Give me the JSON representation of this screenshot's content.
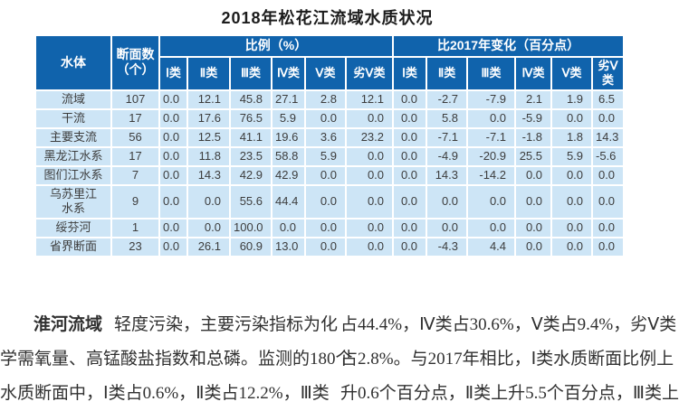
{
  "page": {
    "title": "2018年松花江流域水质状况"
  },
  "table": {
    "header": {
      "water_body": "水体",
      "section_count": "断面数\n（个）",
      "proportion_group": "比例（%）",
      "change_group": "比2017年变化（百分点）",
      "classes": [
        "Ⅰ类",
        "Ⅱ类",
        "Ⅲ类",
        "Ⅳ类",
        "Ⅴ类",
        "劣Ⅴ类"
      ]
    },
    "rows": [
      {
        "name": "流域",
        "count": "107",
        "proportion": [
          "0.0",
          "12.1",
          "45.8",
          "27.1",
          "2.8",
          "12.1"
        ],
        "change": [
          "0.0",
          "-2.7",
          "-7.9",
          "2.1",
          "1.9",
          "6.5"
        ]
      },
      {
        "name": "干流",
        "count": "17",
        "proportion": [
          "0.0",
          "17.6",
          "76.5",
          "5.9",
          "0.0",
          "0.0"
        ],
        "change": [
          "0.0",
          "5.8",
          "0.0",
          "-5.9",
          "0.0",
          "0.0"
        ]
      },
      {
        "name": "主要支流",
        "count": "56",
        "proportion": [
          "0.0",
          "12.5",
          "41.1",
          "19.6",
          "3.6",
          "23.2"
        ],
        "change": [
          "0.0",
          "-7.1",
          "-7.1",
          "-1.8",
          "1.8",
          "14.3"
        ]
      },
      {
        "name": "黑龙江水系",
        "count": "17",
        "proportion": [
          "0.0",
          "11.8",
          "23.5",
          "58.8",
          "5.9",
          "0.0"
        ],
        "change": [
          "0.0",
          "-4.9",
          "-20.9",
          "25.5",
          "5.9",
          "-5.6"
        ]
      },
      {
        "name": "图们江水系",
        "count": "7",
        "proportion": [
          "0.0",
          "14.3",
          "42.9",
          "42.9",
          "0.0",
          "0.0"
        ],
        "change": [
          "0.0",
          "14.3",
          "-14.2",
          "0.0",
          "0.0",
          "0.0"
        ]
      },
      {
        "name": "乌苏里江\n水系",
        "count": "9",
        "proportion": [
          "0.0",
          "0.0",
          "55.6",
          "44.4",
          "0.0",
          "0.0"
        ],
        "change": [
          "0.0",
          "0.0",
          "0.0",
          "0.0",
          "0.0",
          "0.0"
        ]
      },
      {
        "name": "绥芬河",
        "count": "1",
        "proportion": [
          "0.0",
          "0.0",
          "100.0",
          "0.0",
          "0.0",
          "0.0"
        ],
        "change": [
          "0.0",
          "0.0",
          "0.0",
          "0.0",
          "0.0",
          "0.0"
        ]
      },
      {
        "name": "省界断面",
        "count": "23",
        "proportion": [
          "0.0",
          "26.1",
          "60.9",
          "13.0",
          "0.0",
          "0.0"
        ],
        "change": [
          "0.0",
          "-4.3",
          "4.4",
          "0.0",
          "0.0",
          "0.0"
        ]
      }
    ]
  },
  "body_text": {
    "left_column": {
      "lead": "淮河流域",
      "line1_rest": "轻度污染，主要污染指标为化",
      "line2": "学需氧量、高锰酸盐指数和总磷。监测的180个",
      "line3": "水质断面中，Ⅰ类占0.6%，Ⅱ类占12.2%，Ⅲ类"
    },
    "right_column": {
      "line1": "占44.4%，Ⅳ类占30.6%，Ⅴ类占9.4%，劣Ⅴ类",
      "line2": "占2.8%。与2017年相比，Ⅰ类水质断面比例上",
      "line3": "升0.6个百分点，Ⅱ类上升5.5个百分点，Ⅲ类上"
    }
  },
  "colors": {
    "table_header_bg": "#1063ac",
    "table_cell_bg": "#cde5f6",
    "table_text": "#3d3d3d",
    "grid_line": "#ffffff"
  }
}
